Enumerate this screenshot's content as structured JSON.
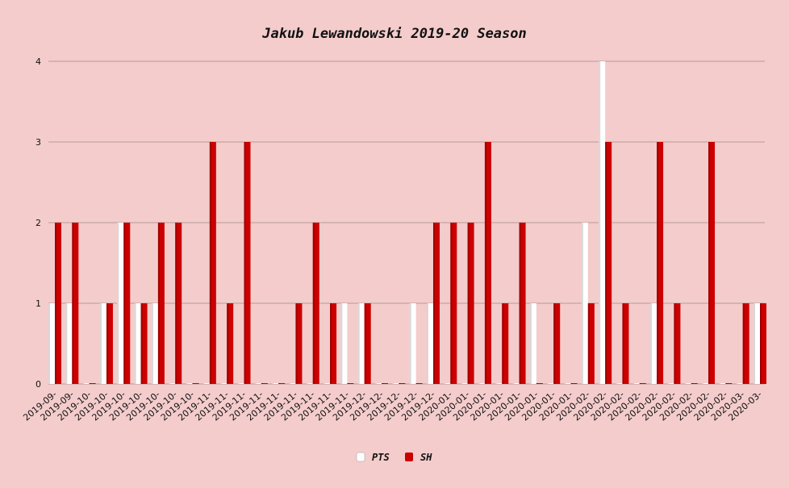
{
  "chart_data": {
    "type": "bar",
    "title": "Jakub Lewandowski 2019-20 Season",
    "xlabel": "",
    "ylabel": "",
    "ylim": [
      0,
      4
    ],
    "yticks": [
      0,
      1,
      2,
      3,
      4
    ],
    "grid": "horizontal",
    "legend_position": "bottom-center",
    "colors": {
      "background": "#f4cccc",
      "grid": "#b89a9a",
      "PTS": "#ffffff",
      "SH": "#cc0000"
    },
    "categories": [
      "2019-09-",
      "2019-09-",
      "2019-10-",
      "2019-10-",
      "2019-10-",
      "2019-10-",
      "2019-10-",
      "2019-10-",
      "2019-10-",
      "2019-11-",
      "2019-11-",
      "2019-11-",
      "2019-11-",
      "2019-11-",
      "2019-11-",
      "2019-11-",
      "2019-11-",
      "2019-11-",
      "2019-12-",
      "2019-12-",
      "2019-12-",
      "2019-12-",
      "2019-12-",
      "2020-01-",
      "2020-01-",
      "2020-01-",
      "2020-01-",
      "2020-01-",
      "2020-01-",
      "2020-01-",
      "2020-01-",
      "2020-02-",
      "2020-02-",
      "2020-02-",
      "2020-02-",
      "2020-02-",
      "2020-02-",
      "2020-02-",
      "2020-02-",
      "2020-02-",
      "2020-03-",
      "2020-03-"
    ],
    "series": [
      {
        "name": "PTS",
        "values": [
          1,
          1,
          0,
          1,
          2,
          1,
          1,
          0,
          0,
          0,
          0,
          0,
          0,
          0,
          0,
          0,
          0,
          1,
          1,
          0,
          0,
          1,
          1,
          0,
          0,
          0,
          0,
          0,
          1,
          0,
          0,
          2,
          4,
          0,
          0,
          1,
          0,
          0,
          0,
          0,
          0,
          1
        ]
      },
      {
        "name": "SH",
        "values": [
          2,
          2,
          0,
          1,
          2,
          1,
          2,
          2,
          0,
          3,
          1,
          3,
          0,
          0,
          1,
          2,
          1,
          0,
          1,
          0,
          0,
          0,
          2,
          2,
          2,
          3,
          1,
          2,
          0,
          1,
          0,
          1,
          3,
          1,
          0,
          3,
          1,
          0,
          3,
          0,
          1,
          1
        ]
      }
    ]
  }
}
